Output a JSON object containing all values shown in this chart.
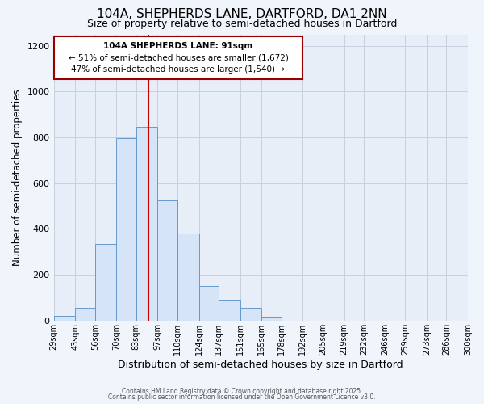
{
  "title": "104A, SHEPHERDS LANE, DARTFORD, DA1 2NN",
  "subtitle": "Size of property relative to semi-detached houses in Dartford",
  "xlabel": "Distribution of semi-detached houses by size in Dartford",
  "ylabel": "Number of semi-detached properties",
  "bar_edges": [
    29,
    43,
    56,
    70,
    83,
    97,
    110,
    124,
    137,
    151,
    165,
    178,
    192,
    205,
    219,
    232,
    246,
    259,
    273,
    286,
    300
  ],
  "bar_heights": [
    22,
    55,
    335,
    795,
    845,
    525,
    380,
    150,
    90,
    55,
    18,
    0,
    0,
    0,
    0,
    0,
    0,
    0,
    0,
    0
  ],
  "bar_color": "#d6e4f7",
  "bar_edge_color": "#6699cc",
  "grid_color": "#c8d0e0",
  "plot_bg_color": "#e8eef8",
  "fig_bg_color": "#f0f4fb",
  "vline_x": 91,
  "vline_color": "#cc0000",
  "annotation_text_line1": "104A SHEPHERDS LANE: 91sqm",
  "annotation_text_line2": "← 51% of semi-detached houses are smaller (1,672)",
  "annotation_text_line3": "47% of semi-detached houses are larger (1,540) →",
  "annotation_box_color": "#ffffff",
  "annotation_box_edge_color": "#990000",
  "tick_labels": [
    "29sqm",
    "43sqm",
    "56sqm",
    "70sqm",
    "83sqm",
    "97sqm",
    "110sqm",
    "124sqm",
    "137sqm",
    "151sqm",
    "165sqm",
    "178sqm",
    "192sqm",
    "205sqm",
    "219sqm",
    "232sqm",
    "246sqm",
    "259sqm",
    "273sqm",
    "286sqm",
    "300sqm"
  ],
  "ylim": [
    0,
    1250
  ],
  "yticks": [
    0,
    200,
    400,
    600,
    800,
    1000,
    1200
  ],
  "footer_line1": "Contains HM Land Registry data © Crown copyright and database right 2025.",
  "footer_line2": "Contains public sector information licensed under the Open Government Licence v3.0."
}
